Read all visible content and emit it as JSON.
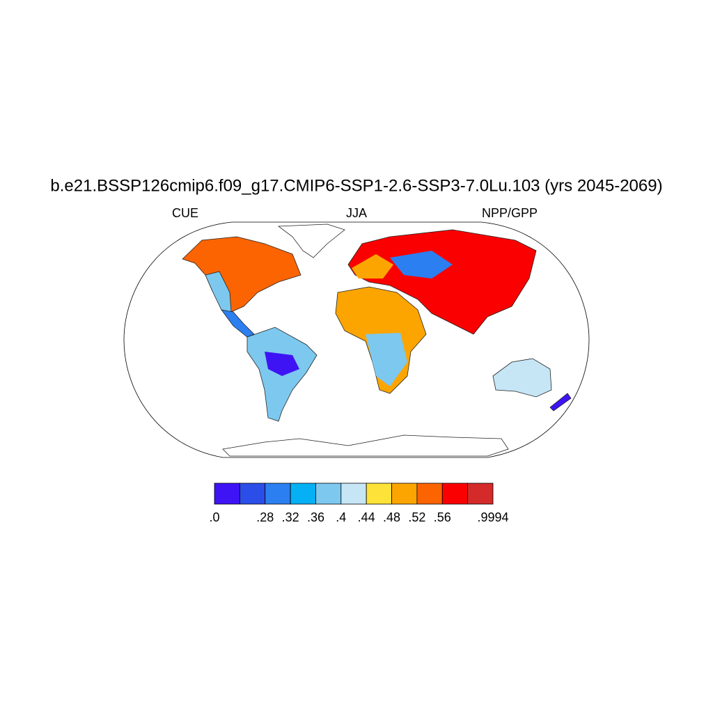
{
  "map": {
    "title": "b.e21.BSSP126cmip6.f09_g17.CMIP6-SSP1-2.6-SSP3-7.0Lu.103 (yrs 2045-2069)",
    "left_string": "CUE",
    "center_string": "JJA",
    "right_string": "NPP/GPP",
    "colorbar": {
      "colors": [
        "#3e14f5",
        "#2b4ee8",
        "#2c7ff0",
        "#06b0f5",
        "#7dc8ef",
        "#c6e6f6",
        "#fde23a",
        "#fca500",
        "#fb6400",
        "#fb0000",
        "#d42a2a"
      ],
      "boundaries": [
        {
          "value": 0,
          "label": ".0"
        },
        null,
        {
          "value": 0.28,
          "label": ".28"
        },
        {
          "value": 0.32,
          "label": ".32"
        },
        {
          "value": 0.36,
          "label": ".36"
        },
        {
          "value": 0.4,
          "label": ".4"
        },
        {
          "value": 0.44,
          "label": ".44"
        },
        {
          "value": 0.48,
          "label": ".48"
        },
        {
          "value": 0.52,
          "label": ".52"
        },
        {
          "value": 0.56,
          "label": ".56"
        },
        null,
        {
          "value": 0.9994,
          "label": ".9994"
        }
      ]
    }
  }
}
